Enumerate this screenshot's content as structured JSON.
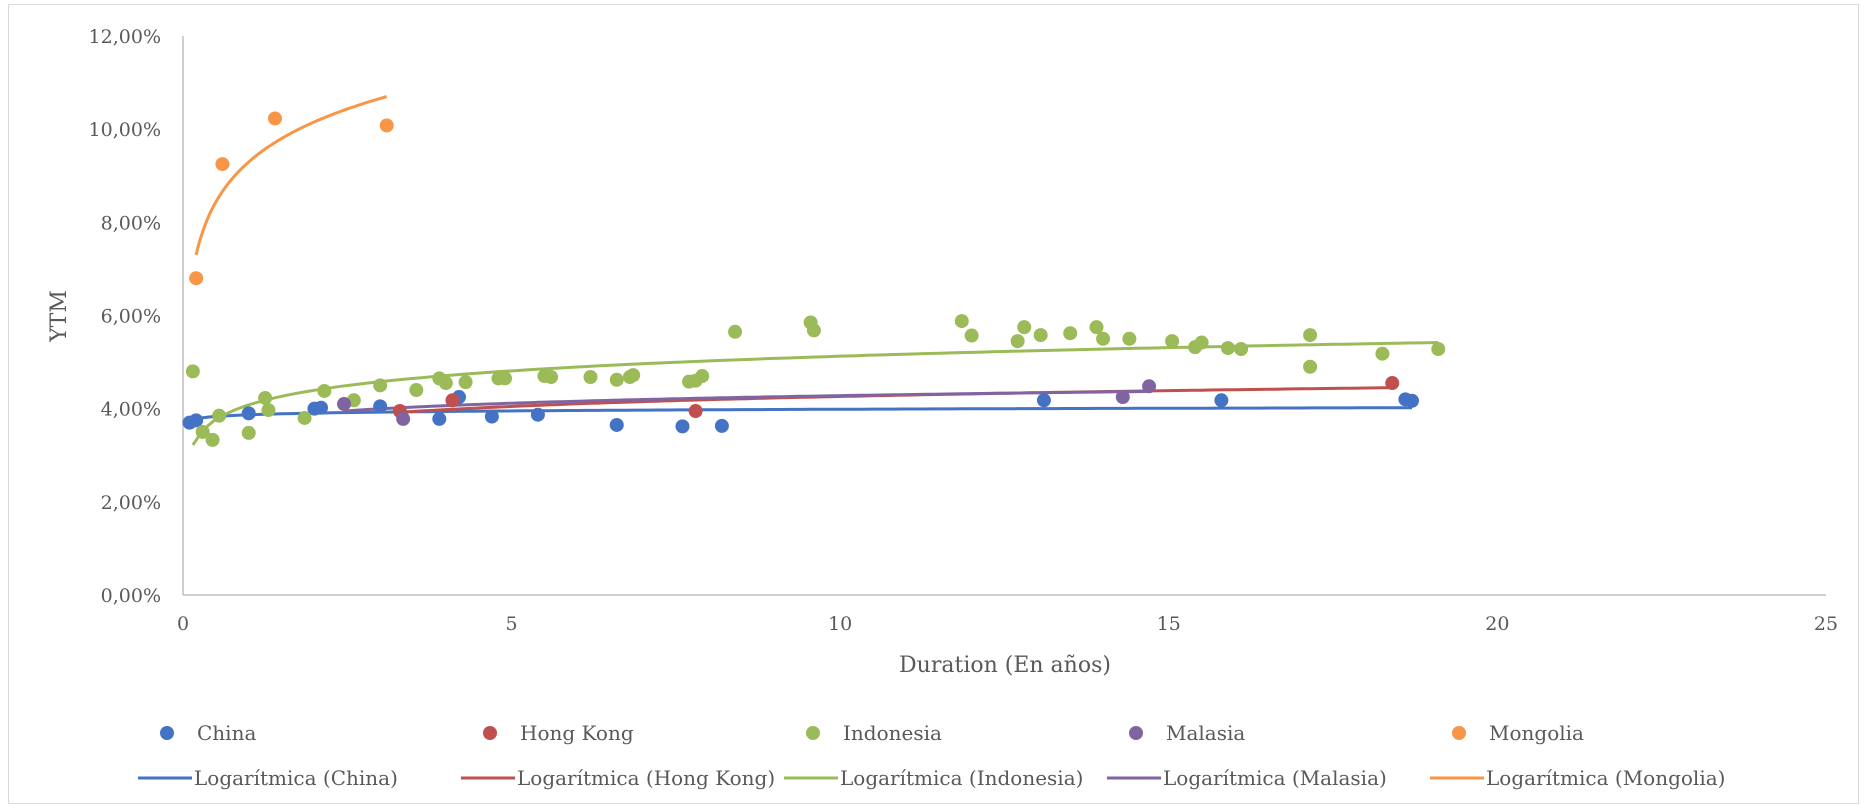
{
  "chart_data": {
    "type": "scatter",
    "title": "",
    "xlabel": "Duration (En años)",
    "ylabel": "YTM",
    "xlim": [
      0,
      25
    ],
    "ylim": [
      0,
      0.12
    ],
    "x_ticks": [
      "0",
      "5",
      "10",
      "15",
      "20",
      "25"
    ],
    "y_ticks": [
      "0,00%",
      "2,00%",
      "4,00%",
      "6,00%",
      "8,00%",
      "10,00%",
      "12,00%"
    ],
    "grid": false,
    "legend_position": "bottom",
    "series": [
      {
        "name": "China",
        "color": "#4472C4",
        "points": [
          [
            0.1,
            0.037
          ],
          [
            0.2,
            0.0375
          ],
          [
            1.0,
            0.039
          ],
          [
            2.0,
            0.04
          ],
          [
            2.1,
            0.0402
          ],
          [
            3.0,
            0.0405
          ],
          [
            3.9,
            0.0378
          ],
          [
            4.2,
            0.0425
          ],
          [
            4.7,
            0.0383
          ],
          [
            5.4,
            0.0387
          ],
          [
            6.6,
            0.0365
          ],
          [
            7.6,
            0.0362
          ],
          [
            8.2,
            0.0363
          ],
          [
            13.1,
            0.0418
          ],
          [
            15.8,
            0.0418
          ],
          [
            18.6,
            0.042
          ],
          [
            18.7,
            0.0417
          ]
        ]
      },
      {
        "name": "Hong Kong",
        "color": "#C0504D",
        "points": [
          [
            3.3,
            0.0395
          ],
          [
            4.1,
            0.0418
          ],
          [
            7.8,
            0.0395
          ],
          [
            18.4,
            0.0455
          ]
        ]
      },
      {
        "name": "Indonesia",
        "color": "#9BBB59",
        "points": [
          [
            0.15,
            0.048
          ],
          [
            0.3,
            0.035
          ],
          [
            0.45,
            0.0333
          ],
          [
            0.55,
            0.0385
          ],
          [
            1.0,
            0.0348
          ],
          [
            1.25,
            0.0423
          ],
          [
            1.3,
            0.0397
          ],
          [
            1.85,
            0.038
          ],
          [
            2.15,
            0.0438
          ],
          [
            2.6,
            0.0418
          ],
          [
            3.0,
            0.045
          ],
          [
            3.55,
            0.044
          ],
          [
            3.9,
            0.0465
          ],
          [
            4.0,
            0.0455
          ],
          [
            4.3,
            0.0457
          ],
          [
            4.8,
            0.0465
          ],
          [
            4.9,
            0.0465
          ],
          [
            5.5,
            0.047
          ],
          [
            5.6,
            0.0468
          ],
          [
            6.2,
            0.0468
          ],
          [
            6.6,
            0.0462
          ],
          [
            6.8,
            0.0468
          ],
          [
            6.85,
            0.0472
          ],
          [
            7.7,
            0.0458
          ],
          [
            7.8,
            0.046
          ],
          [
            7.9,
            0.047
          ],
          [
            8.4,
            0.0565
          ],
          [
            9.55,
            0.0585
          ],
          [
            9.6,
            0.0568
          ],
          [
            11.85,
            0.0588
          ],
          [
            12.0,
            0.0557
          ],
          [
            12.7,
            0.0545
          ],
          [
            12.8,
            0.0575
          ],
          [
            13.05,
            0.0558
          ],
          [
            13.5,
            0.0562
          ],
          [
            13.9,
            0.0575
          ],
          [
            14.0,
            0.055
          ],
          [
            14.4,
            0.055
          ],
          [
            15.05,
            0.0545
          ],
          [
            15.4,
            0.0532
          ],
          [
            15.5,
            0.0542
          ],
          [
            15.9,
            0.053
          ],
          [
            16.1,
            0.0528
          ],
          [
            17.15,
            0.0558
          ],
          [
            17.15,
            0.049
          ],
          [
            18.25,
            0.0518
          ],
          [
            19.1,
            0.0528
          ]
        ]
      },
      {
        "name": "Malasia",
        "color": "#8064A2",
        "points": [
          [
            2.45,
            0.041
          ],
          [
            3.35,
            0.0378
          ],
          [
            14.3,
            0.0425
          ],
          [
            14.7,
            0.0448
          ]
        ]
      },
      {
        "name": "Mongolia",
        "color": "#F79646",
        "points": [
          [
            0.2,
            0.068
          ],
          [
            0.6,
            0.0925
          ],
          [
            1.4,
            0.1023
          ],
          [
            3.1,
            0.1008
          ]
        ]
      }
    ],
    "trendlines": [
      {
        "name": "Logarítmica (China)",
        "color": "#4472C4",
        "type": "logarithmic",
        "x_range": [
          0.1,
          18.7
        ],
        "y_at_start": 0.0375,
        "y_at_end": 0.0402
      },
      {
        "name": "Logarítmica (Hong Kong)",
        "color": "#C0504D",
        "type": "logarithmic",
        "x_range": [
          3.3,
          18.4
        ],
        "y_at_start": 0.0392,
        "y_at_end": 0.0445
      },
      {
        "name": "Logarítmica (Indonesia)",
        "color": "#9BBB59",
        "type": "logarithmic",
        "x_range": [
          0.15,
          19.1
        ],
        "y_at_start": 0.0322,
        "y_at_end": 0.0542
      },
      {
        "name": "Logarítmica (Malasia)",
        "color": "#8064A2",
        "type": "logarithmic",
        "x_range": [
          2.45,
          14.7
        ],
        "y_at_start": 0.0395,
        "y_at_end": 0.0437
      },
      {
        "name": "Logarítmica (Mongolia)",
        "color": "#F79646",
        "type": "logarithmic",
        "x_range": [
          0.2,
          3.1
        ],
        "y_at_start": 0.073,
        "y_at_end": 0.107
      }
    ]
  }
}
